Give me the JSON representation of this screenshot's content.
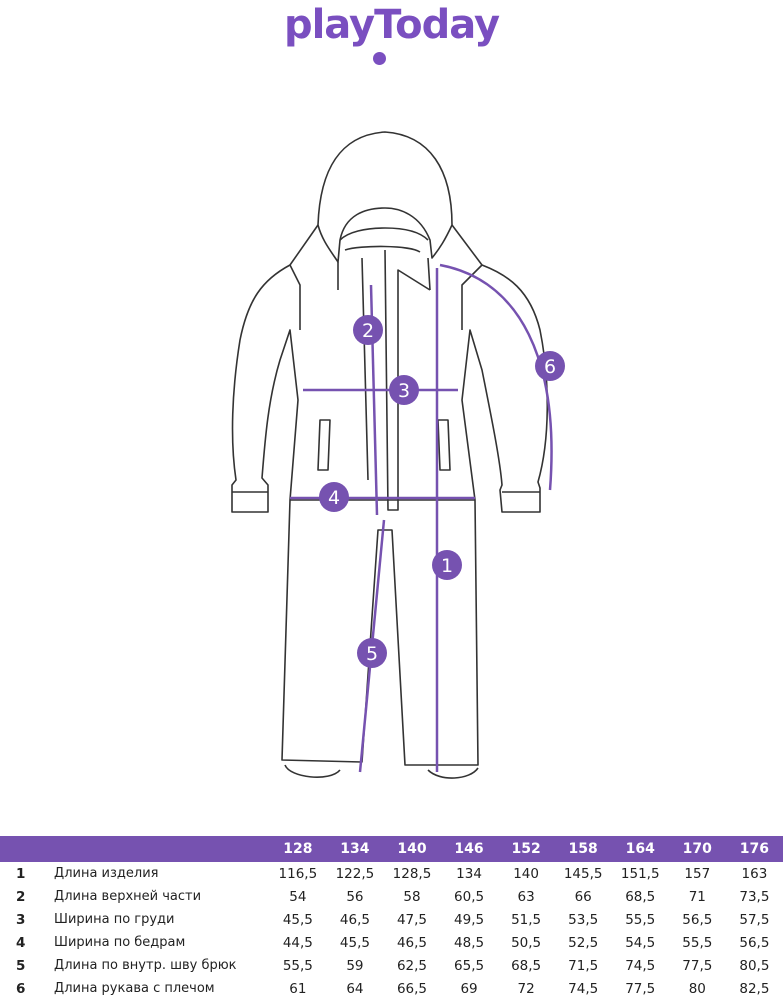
{
  "brand": {
    "logo_text": "playToday",
    "color": "#7a4fc0"
  },
  "diagram": {
    "accent": "#7652b0",
    "markers": [
      "1",
      "2",
      "3",
      "4",
      "5",
      "6"
    ]
  },
  "size_table": {
    "sizes": [
      "128",
      "134",
      "140",
      "146",
      "152",
      "158",
      "164",
      "170",
      "176"
    ],
    "rows": [
      {
        "num": "1",
        "label": "Длина изделия",
        "values": [
          "116,5",
          "122,5",
          "128,5",
          "134",
          "140",
          "145,5",
          "151,5",
          "157",
          "163"
        ]
      },
      {
        "num": "2",
        "label": "Длина верхней части",
        "values": [
          "54",
          "56",
          "58",
          "60,5",
          "63",
          "66",
          "68,5",
          "71",
          "73,5"
        ]
      },
      {
        "num": "3",
        "label": "Ширина по груди",
        "values": [
          "45,5",
          "46,5",
          "47,5",
          "49,5",
          "51,5",
          "53,5",
          "55,5",
          "56,5",
          "57,5"
        ]
      },
      {
        "num": "4",
        "label": "Ширина по бедрам",
        "values": [
          "44,5",
          "45,5",
          "46,5",
          "48,5",
          "50,5",
          "52,5",
          "54,5",
          "55,5",
          "56,5"
        ]
      },
      {
        "num": "5",
        "label": "Длина по внутр. шву брюк",
        "values": [
          "55,5",
          "59",
          "62,5",
          "65,5",
          "68,5",
          "71,5",
          "74,5",
          "77,5",
          "80,5"
        ]
      },
      {
        "num": "6",
        "label": "Длина рукава с плечом",
        "values": [
          "61",
          "64",
          "66,5",
          "69",
          "72",
          "74,5",
          "77,5",
          "80",
          "82,5"
        ]
      }
    ]
  }
}
